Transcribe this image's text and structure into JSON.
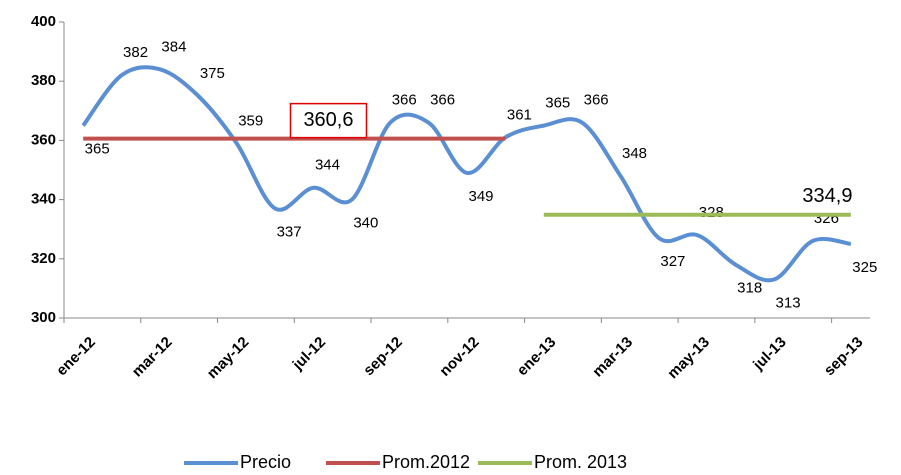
{
  "chart_data": {
    "type": "line",
    "categories": [
      "ene-12",
      null,
      "mar-12",
      null,
      "may-12",
      null,
      "jul-12",
      null,
      "sep-12",
      null,
      "nov-12",
      null,
      "ene-13",
      null,
      "mar-13",
      null,
      "may-13",
      null,
      "jul-13",
      null,
      "sep-13"
    ],
    "series": [
      {
        "name": "Precio",
        "color": "#5b8fd4",
        "values": [
          365,
          382,
          384,
          375,
          359,
          337,
          344,
          340,
          366,
          366,
          349,
          361,
          365,
          366,
          348,
          327,
          328,
          318,
          313,
          326,
          325
        ]
      },
      {
        "name": "Prom.2012",
        "color": "#c0504d",
        "values": [
          360.6,
          360.6,
          360.6,
          360.6,
          360.6,
          360.6,
          360.6,
          360.6,
          360.6,
          360.6,
          360.6,
          360.6,
          null,
          null,
          null,
          null,
          null,
          null,
          null,
          null,
          null
        ],
        "value_labels": [
          null,
          null,
          null,
          null,
          null,
          null,
          "360,6",
          null,
          null,
          null,
          null,
          null,
          null,
          null,
          null,
          null,
          null,
          null,
          null,
          null,
          null
        ]
      },
      {
        "name": "Prom. 2013",
        "color": "#9bbb59",
        "values": [
          null,
          null,
          null,
          null,
          null,
          null,
          null,
          null,
          null,
          null,
          null,
          null,
          334.9,
          334.9,
          334.9,
          334.9,
          334.9,
          334.9,
          334.9,
          334.9,
          334.9
        ],
        "value_labels": [
          null,
          null,
          null,
          null,
          null,
          null,
          null,
          null,
          null,
          null,
          null,
          null,
          null,
          null,
          null,
          null,
          null,
          null,
          null,
          "334,9",
          null
        ]
      }
    ],
    "ylim": [
      300,
      400
    ],
    "yticks": [
      300,
      320,
      340,
      360,
      380,
      400
    ]
  }
}
